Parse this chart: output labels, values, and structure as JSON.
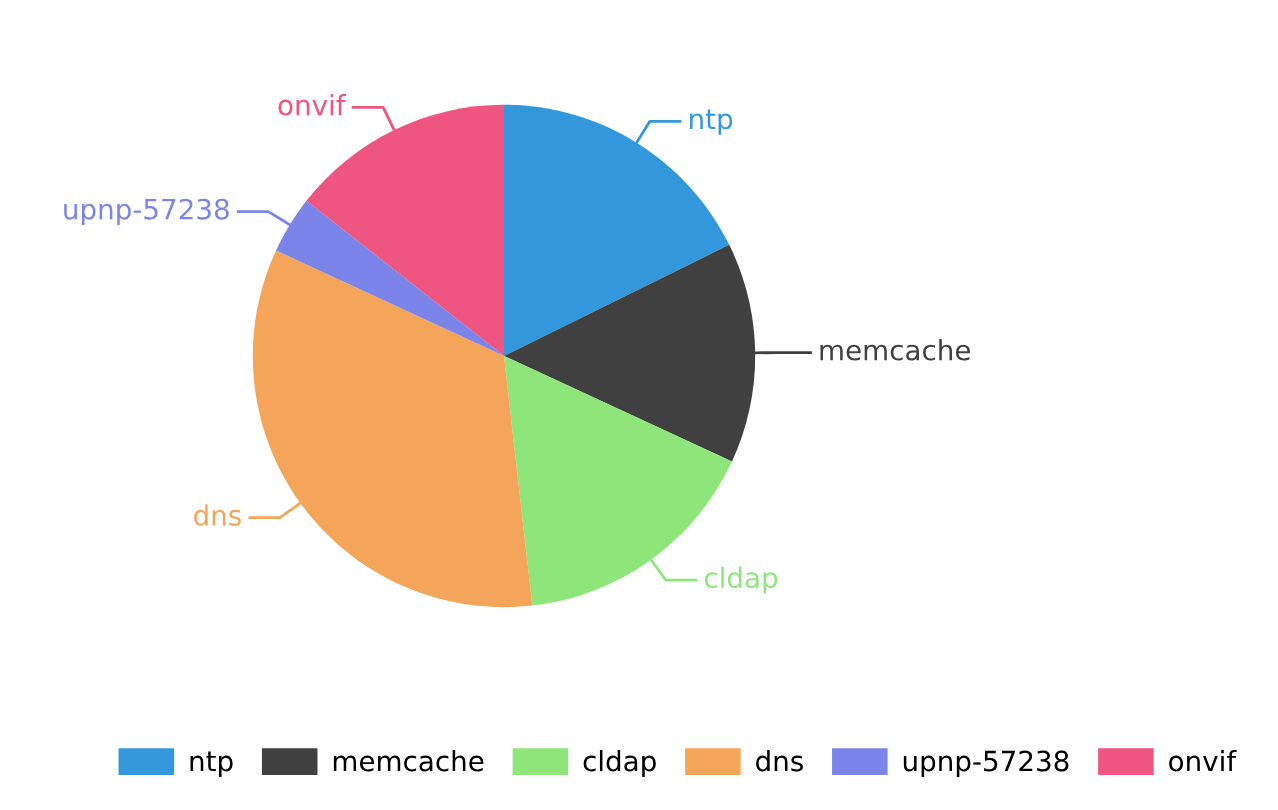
{
  "chart_data": {
    "type": "pie",
    "categories": [
      "ntp",
      "memcache",
      "cldap",
      "dns",
      "upnp-57238",
      "onvif"
    ],
    "values": [
      17.7,
      14.2,
      16.3,
      33.7,
      3.7,
      14.4
    ],
    "colors": [
      "#3398db",
      "#404040",
      "#8ee67a",
      "#f5a55a",
      "#7b84e8",
      "#ee5581"
    ],
    "legend": "bottom"
  }
}
